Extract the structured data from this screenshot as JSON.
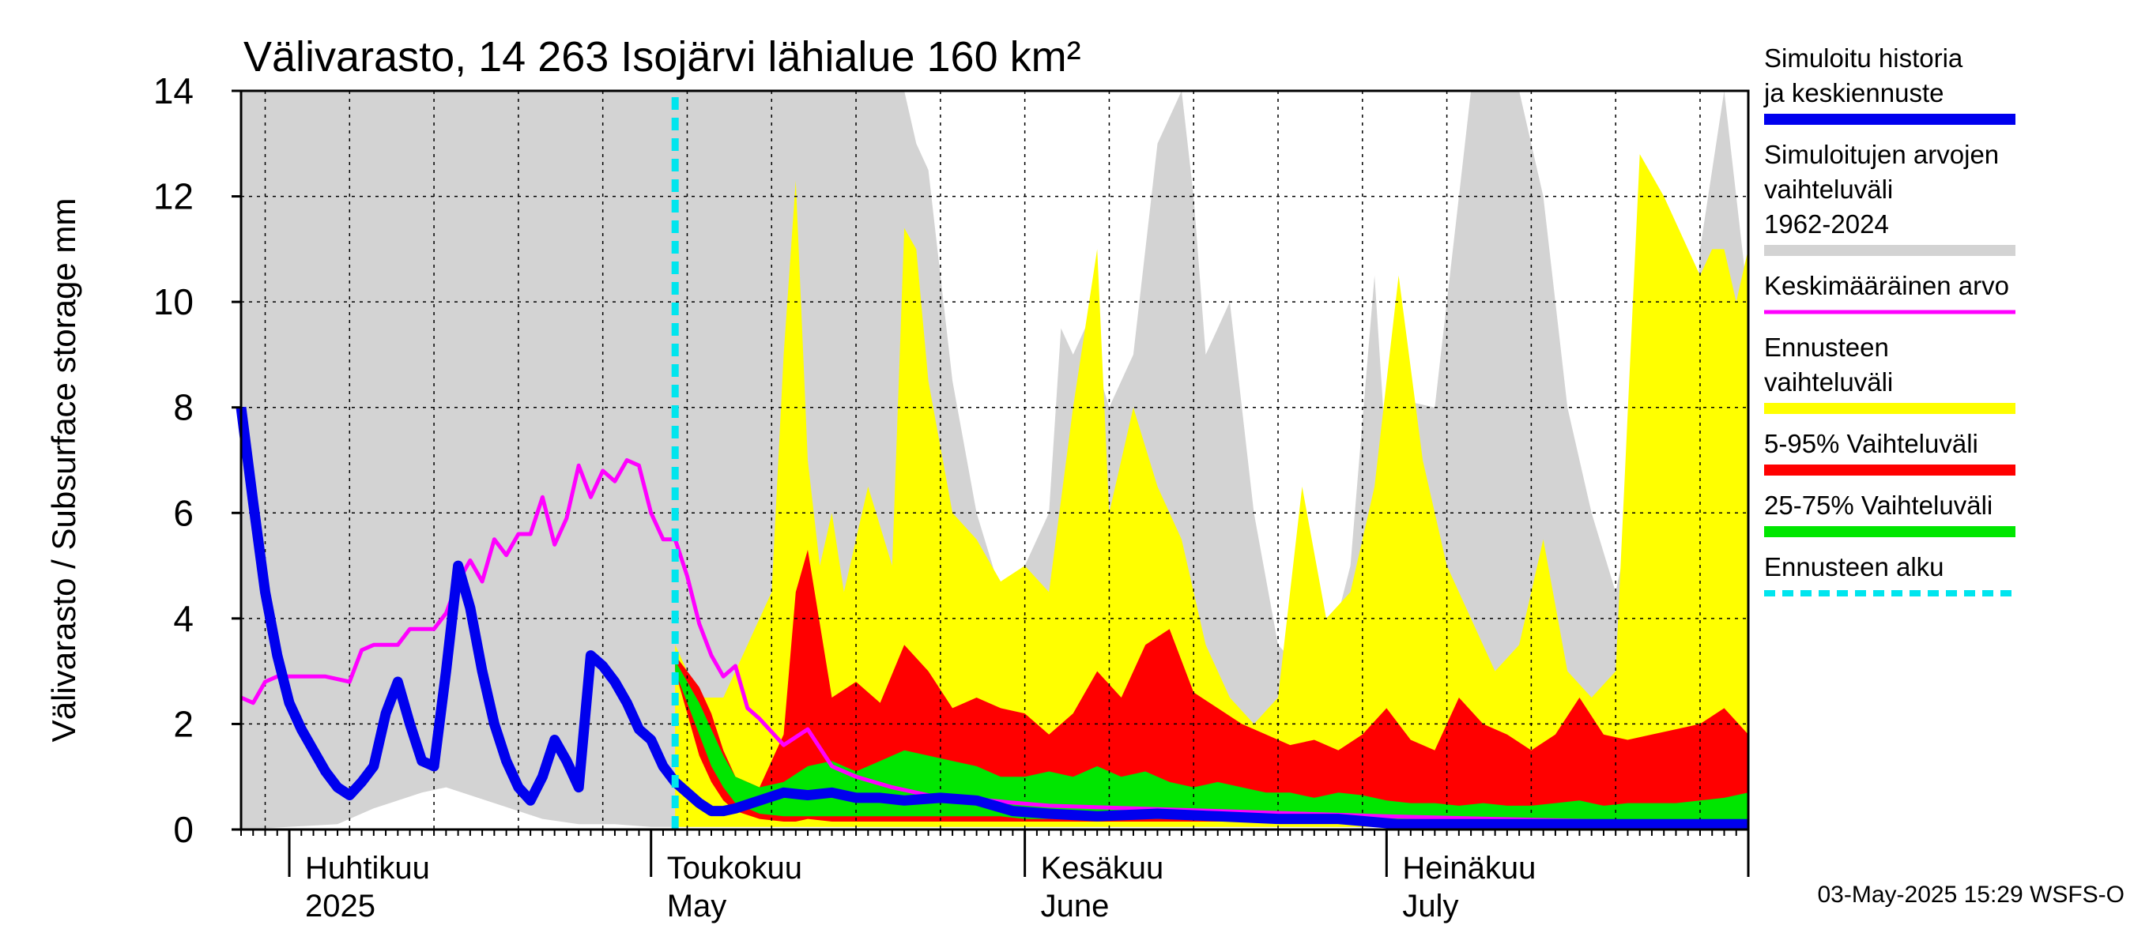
{
  "chart_data": {
    "type": "area",
    "title": "Välivarasto, 14 263 Isojärvi lähialue 160 km²",
    "ylabel": "Välivarasto / Subsurface storage  mm",
    "ylim": [
      0,
      14
    ],
    "yticks": [
      0,
      2,
      4,
      6,
      8,
      10,
      12,
      14
    ],
    "xlim": [
      "2025-03-28",
      "2025-07-31"
    ],
    "grid": true,
    "month_labels": [
      {
        "start": "2025-04-01",
        "fi": "Huhtikuu",
        "en": "2025"
      },
      {
        "start": "2025-05-01",
        "fi": "Toukokuu",
        "en": "May"
      },
      {
        "start": "2025-06-01",
        "fi": "Kesäkuu",
        "en": "June"
      },
      {
        "start": "2025-07-01",
        "fi": "Heinäkuu",
        "en": "July"
      }
    ],
    "forecast_start": "2025-05-03",
    "timestamp": "03-May-2025 15:29 WSFS-O",
    "legend": [
      {
        "label": "Simuloitu historia ja keskiennuste",
        "color": "#0000ee",
        "style": "thick"
      },
      {
        "label": "Simuloitujen arvojen vaihteluväli 1962-2024",
        "color": "#d3d3d3",
        "style": "band"
      },
      {
        "label": "Keskimääräinen arvo",
        "color": "#ff00ff",
        "style": "thin"
      },
      {
        "label": "Ennusteen vaihteluväli",
        "color": "#ffff00",
        "style": "band"
      },
      {
        "label": "5-95% Vaihteluväli",
        "color": "#ff0000",
        "style": "band"
      },
      {
        "label": "25-75% Vaihteluväli",
        "color": "#00e600",
        "style": "band"
      },
      {
        "label": "Ennusteen alku",
        "color": "#00e5ee",
        "style": "dashed"
      }
    ],
    "series": [
      {
        "name": "Simuloitu historia ja keskiennuste",
        "x": [
          "2025-03-28",
          "2025-03-29",
          "2025-03-30",
          "2025-03-31",
          "2025-04-01",
          "2025-04-02",
          "2025-04-03",
          "2025-04-04",
          "2025-04-05",
          "2025-04-06",
          "2025-04-07",
          "2025-04-08",
          "2025-04-09",
          "2025-04-10",
          "2025-04-11",
          "2025-04-12",
          "2025-04-13",
          "2025-04-14",
          "2025-04-15",
          "2025-04-16",
          "2025-04-17",
          "2025-04-18",
          "2025-04-19",
          "2025-04-20",
          "2025-04-21",
          "2025-04-22",
          "2025-04-23",
          "2025-04-24",
          "2025-04-25",
          "2025-04-26",
          "2025-04-27",
          "2025-04-28",
          "2025-04-29",
          "2025-04-30",
          "2025-05-01",
          "2025-05-02",
          "2025-05-03",
          "2025-05-04",
          "2025-05-05",
          "2025-05-06",
          "2025-05-07",
          "2025-05-08",
          "2025-05-10",
          "2025-05-12",
          "2025-05-14",
          "2025-05-16",
          "2025-05-18",
          "2025-05-20",
          "2025-05-22",
          "2025-05-25",
          "2025-05-28",
          "2025-05-31",
          "2025-06-03",
          "2025-06-07",
          "2025-06-12",
          "2025-06-17",
          "2025-06-22",
          "2025-06-27",
          "2025-07-02",
          "2025-07-10",
          "2025-07-20",
          "2025-07-31"
        ],
        "values": [
          8.0,
          6.2,
          4.5,
          3.3,
          2.4,
          1.9,
          1.5,
          1.1,
          0.8,
          0.65,
          0.9,
          1.2,
          2.2,
          2.8,
          2.0,
          1.3,
          1.2,
          3.0,
          5.0,
          4.2,
          3.0,
          2.0,
          1.3,
          0.8,
          0.55,
          1.0,
          1.7,
          1.3,
          0.8,
          3.3,
          3.1,
          2.8,
          2.4,
          1.9,
          1.7,
          1.2,
          0.9,
          0.7,
          0.5,
          0.35,
          0.35,
          0.4,
          0.55,
          0.7,
          0.65,
          0.7,
          0.6,
          0.6,
          0.55,
          0.6,
          0.55,
          0.35,
          0.3,
          0.25,
          0.3,
          0.25,
          0.2,
          0.2,
          0.1,
          0.1,
          0.1,
          0.1
        ]
      },
      {
        "name": "Keskimääräinen arvo",
        "x": [
          "2025-03-28",
          "2025-03-29",
          "2025-03-30",
          "2025-03-31",
          "2025-04-02",
          "2025-04-04",
          "2025-04-06",
          "2025-04-07",
          "2025-04-08",
          "2025-04-10",
          "2025-04-11",
          "2025-04-12",
          "2025-04-13",
          "2025-04-14",
          "2025-04-15",
          "2025-04-16",
          "2025-04-17",
          "2025-04-18",
          "2025-04-19",
          "2025-04-20",
          "2025-04-21",
          "2025-04-22",
          "2025-04-23",
          "2025-04-24",
          "2025-04-25",
          "2025-04-26",
          "2025-04-27",
          "2025-04-28",
          "2025-04-29",
          "2025-04-30",
          "2025-05-01",
          "2025-05-02",
          "2025-05-03",
          "2025-05-04",
          "2025-05-05",
          "2025-05-06",
          "2025-05-07",
          "2025-05-08",
          "2025-05-09",
          "2025-05-10",
          "2025-05-12",
          "2025-05-14",
          "2025-05-16",
          "2025-05-18",
          "2025-05-21",
          "2025-05-25",
          "2025-05-29",
          "2025-06-03",
          "2025-06-10",
          "2025-06-17",
          "2025-06-24",
          "2025-07-01",
          "2025-07-10",
          "2025-07-20",
          "2025-07-31"
        ],
        "values": [
          2.5,
          2.4,
          2.8,
          2.9,
          2.9,
          2.9,
          2.8,
          3.4,
          3.5,
          3.5,
          3.8,
          3.8,
          3.8,
          4.1,
          4.7,
          5.1,
          4.7,
          5.5,
          5.2,
          5.6,
          5.6,
          6.3,
          5.4,
          5.9,
          6.9,
          6.3,
          6.8,
          6.6,
          7.0,
          6.9,
          6.0,
          5.5,
          5.5,
          4.8,
          3.9,
          3.3,
          2.9,
          3.1,
          2.3,
          2.1,
          1.6,
          1.9,
          1.2,
          1.0,
          0.8,
          0.6,
          0.55,
          0.45,
          0.4,
          0.35,
          0.3,
          0.25,
          0.2,
          0.15,
          0.1
        ]
      }
    ],
    "bands": [
      {
        "name": "Simuloitujen arvojen vaihteluväli 1962-2024",
        "x": [
          "2025-03-28",
          "2025-04-05",
          "2025-04-08",
          "2025-04-12",
          "2025-04-14",
          "2025-04-18",
          "2025-04-22",
          "2025-04-25",
          "2025-04-28",
          "2025-05-01",
          "2025-05-05",
          "2025-05-08",
          "2025-05-12",
          "2025-05-15",
          "2025-05-18",
          "2025-05-20",
          "2025-05-22",
          "2025-05-23",
          "2025-05-24",
          "2025-05-26",
          "2025-05-28",
          "2025-05-30",
          "2025-06-01",
          "2025-06-02",
          "2025-06-03",
          "2025-06-04",
          "2025-06-05",
          "2025-06-06",
          "2025-06-08",
          "2025-06-10",
          "2025-06-12",
          "2025-06-14",
          "2025-06-15",
          "2025-06-16",
          "2025-06-18",
          "2025-06-20",
          "2025-06-22",
          "2025-06-24",
          "2025-06-26",
          "2025-06-28",
          "2025-06-30",
          "2025-07-01",
          "2025-07-03",
          "2025-07-05",
          "2025-07-07",
          "2025-07-08",
          "2025-07-10",
          "2025-07-12",
          "2025-07-14",
          "2025-07-16",
          "2025-07-18",
          "2025-07-20",
          "2025-07-22",
          "2025-07-24",
          "2025-07-25",
          "2025-07-27",
          "2025-07-29",
          "2025-07-31"
        ],
        "upper": [
          14,
          14,
          14,
          14,
          14,
          14,
          14,
          14,
          14,
          14,
          14,
          14,
          14,
          14,
          14,
          14,
          14,
          13,
          12.5,
          8.5,
          6,
          4.5,
          5,
          5.5,
          6,
          9.5,
          9,
          9.5,
          8,
          9,
          13,
          14,
          12,
          9,
          10,
          6,
          3.5,
          3,
          3.2,
          5,
          10.5,
          7,
          8.1,
          8,
          12,
          14,
          14,
          14,
          12,
          8,
          6,
          4.5,
          6.7,
          4,
          3.5,
          11,
          14,
          10
        ],
        "lower": [
          0,
          0.1,
          0.4,
          0.7,
          0.8,
          0.5,
          0.2,
          0.1,
          0.1,
          0.05,
          0.05,
          0.05,
          0.05,
          0.05,
          0.05,
          0.05,
          0.05,
          0.05,
          0.05,
          0.05,
          0.05,
          0.05,
          0.05,
          0.05,
          0.05,
          0.05,
          0.05,
          0.05,
          0.05,
          0.05,
          0.05,
          0.05,
          0.05,
          0.05,
          0.05,
          0.05,
          0.05,
          0.05,
          0.05,
          0.05,
          0.05,
          0.05,
          0.05,
          0.05,
          0.05,
          0.05,
          0.05,
          0.05,
          0.05,
          0.05,
          0.05,
          0.05,
          0.05,
          0.05,
          0.05,
          0.05,
          0.05,
          0.05
        ]
      },
      {
        "name": "Ennusteen vaihteluväli",
        "x": [
          "2025-05-03",
          "2025-05-04",
          "2025-05-05",
          "2025-05-07",
          "2025-05-09",
          "2025-05-11",
          "2025-05-12",
          "2025-05-13",
          "2025-05-14",
          "2025-05-15",
          "2025-05-16",
          "2025-05-17",
          "2025-05-19",
          "2025-05-21",
          "2025-05-22",
          "2025-05-23",
          "2025-05-24",
          "2025-05-26",
          "2025-05-28",
          "2025-05-30",
          "2025-06-01",
          "2025-06-03",
          "2025-06-05",
          "2025-06-07",
          "2025-06-08",
          "2025-06-10",
          "2025-06-12",
          "2025-06-14",
          "2025-06-16",
          "2025-06-18",
          "2025-06-20",
          "2025-06-22",
          "2025-06-24",
          "2025-06-26",
          "2025-06-28",
          "2025-06-30",
          "2025-07-02",
          "2025-07-04",
          "2025-07-06",
          "2025-07-08",
          "2025-07-10",
          "2025-07-12",
          "2025-07-14",
          "2025-07-16",
          "2025-07-18",
          "2025-07-20",
          "2025-07-22",
          "2025-07-24",
          "2025-07-26",
          "2025-07-27",
          "2025-07-28",
          "2025-07-29",
          "2025-07-30",
          "2025-07-31"
        ],
        "upper": [
          3.5,
          3.0,
          2.5,
          2.5,
          3.5,
          4.5,
          9,
          12.3,
          7,
          5,
          6,
          4.5,
          6.5,
          5,
          11.4,
          11,
          8.5,
          6,
          5.5,
          4.7,
          5,
          4.5,
          8,
          11,
          6,
          8,
          6.5,
          5.5,
          3.5,
          2.5,
          2,
          2.5,
          6.5,
          4,
          4.5,
          6.5,
          10.5,
          7,
          5,
          4,
          3,
          3.5,
          5.5,
          3,
          2.5,
          3,
          12.8,
          12,
          11,
          10.5,
          11,
          11,
          10,
          11
        ],
        "lower": [
          0.05,
          0.05,
          0.05,
          0.05,
          0.05,
          0.05,
          0.05,
          0.05,
          0.05,
          0.05,
          0.05,
          0.05,
          0.05,
          0.05,
          0.05,
          0.05,
          0.05,
          0.05,
          0.05,
          0.05,
          0.05,
          0.05,
          0.05,
          0.05,
          0.05,
          0.05,
          0.05,
          0.05,
          0.05,
          0.05,
          0.05,
          0.05,
          0.05,
          0.05,
          0.05,
          0.05,
          0.05,
          0.05,
          0.05,
          0.05,
          0.05,
          0.05,
          0.05,
          0.05,
          0.05,
          0.05,
          0.05,
          0.05,
          0.05,
          0.05,
          0.05,
          0.05,
          0.05,
          0.05
        ]
      },
      {
        "name": "5-95% Vaihteluväli",
        "x": [
          "2025-05-03",
          "2025-05-04",
          "2025-05-05",
          "2025-05-06",
          "2025-05-07",
          "2025-05-08",
          "2025-05-10",
          "2025-05-12",
          "2025-05-13",
          "2025-05-14",
          "2025-05-16",
          "2025-05-18",
          "2025-05-20",
          "2025-05-22",
          "2025-05-24",
          "2025-05-26",
          "2025-05-28",
          "2025-05-30",
          "2025-06-01",
          "2025-06-03",
          "2025-06-05",
          "2025-06-07",
          "2025-06-09",
          "2025-06-11",
          "2025-06-13",
          "2025-06-15",
          "2025-06-17",
          "2025-06-19",
          "2025-06-21",
          "2025-06-23",
          "2025-06-25",
          "2025-06-27",
          "2025-06-29",
          "2025-07-01",
          "2025-07-03",
          "2025-07-05",
          "2025-07-07",
          "2025-07-09",
          "2025-07-11",
          "2025-07-13",
          "2025-07-15",
          "2025-07-17",
          "2025-07-19",
          "2025-07-21",
          "2025-07-23",
          "2025-07-25",
          "2025-07-27",
          "2025-07-29",
          "2025-07-31"
        ],
        "upper": [
          3.3,
          3.0,
          2.7,
          2.2,
          1.5,
          1.0,
          0.8,
          1.8,
          4.5,
          5.3,
          2.5,
          2.8,
          2.4,
          3.5,
          3.0,
          2.3,
          2.5,
          2.3,
          2.2,
          1.8,
          2.2,
          3.0,
          2.5,
          3.5,
          3.8,
          2.6,
          2.3,
          2.0,
          1.8,
          1.6,
          1.7,
          1.5,
          1.8,
          2.3,
          1.7,
          1.5,
          2.5,
          2.0,
          1.8,
          1.5,
          1.8,
          2.5,
          1.8,
          1.7,
          1.8,
          1.9,
          2.0,
          2.3,
          1.8
        ],
        "lower": [
          3.0,
          2.2,
          1.4,
          0.9,
          0.55,
          0.35,
          0.2,
          0.15,
          0.15,
          0.2,
          0.15,
          0.15,
          0.15,
          0.15,
          0.15,
          0.15,
          0.15,
          0.15,
          0.15,
          0.15,
          0.15,
          0.15,
          0.15,
          0.15,
          0.15,
          0.15,
          0.15,
          0.15,
          0.15,
          0.15,
          0.15,
          0.15,
          0.15,
          0.1,
          0.1,
          0.1,
          0.1,
          0.1,
          0.1,
          0.1,
          0.1,
          0.1,
          0.1,
          0.1,
          0.1,
          0.1,
          0.1,
          0.1,
          0.1
        ]
      },
      {
        "name": "25-75% Vaihteluväli",
        "x": [
          "2025-05-03",
          "2025-05-04",
          "2025-05-05",
          "2025-05-06",
          "2025-05-07",
          "2025-05-08",
          "2025-05-10",
          "2025-05-12",
          "2025-05-14",
          "2025-05-16",
          "2025-05-18",
          "2025-05-20",
          "2025-05-22",
          "2025-05-24",
          "2025-05-26",
          "2025-05-28",
          "2025-05-30",
          "2025-06-01",
          "2025-06-03",
          "2025-06-05",
          "2025-06-07",
          "2025-06-09",
          "2025-06-11",
          "2025-06-13",
          "2025-06-15",
          "2025-06-17",
          "2025-06-19",
          "2025-06-21",
          "2025-06-23",
          "2025-06-25",
          "2025-06-27",
          "2025-06-29",
          "2025-07-01",
          "2025-07-03",
          "2025-07-05",
          "2025-07-07",
          "2025-07-09",
          "2025-07-11",
          "2025-07-13",
          "2025-07-15",
          "2025-07-17",
          "2025-07-19",
          "2025-07-21",
          "2025-07-23",
          "2025-07-25",
          "2025-07-27",
          "2025-07-29",
          "2025-07-31"
        ],
        "upper": [
          3.2,
          2.8,
          2.4,
          1.9,
          1.4,
          1.0,
          0.8,
          0.9,
          1.2,
          1.3,
          1.1,
          1.3,
          1.5,
          1.4,
          1.3,
          1.2,
          1.0,
          1.0,
          1.1,
          1.0,
          1.2,
          1.0,
          1.1,
          0.9,
          0.8,
          0.9,
          0.8,
          0.7,
          0.7,
          0.6,
          0.7,
          0.65,
          0.55,
          0.5,
          0.5,
          0.45,
          0.5,
          0.45,
          0.45,
          0.5,
          0.55,
          0.45,
          0.5,
          0.5,
          0.5,
          0.55,
          0.6,
          0.7
        ],
        "lower": [
          3.0,
          2.4,
          1.8,
          1.2,
          0.8,
          0.5,
          0.3,
          0.25,
          0.25,
          0.25,
          0.25,
          0.25,
          0.25,
          0.25,
          0.25,
          0.25,
          0.25,
          0.2,
          0.2,
          0.2,
          0.2,
          0.2,
          0.2,
          0.2,
          0.2,
          0.2,
          0.2,
          0.2,
          0.2,
          0.2,
          0.2,
          0.15,
          0.15,
          0.15,
          0.15,
          0.15,
          0.15,
          0.15,
          0.15,
          0.15,
          0.15,
          0.15,
          0.15,
          0.15,
          0.15,
          0.15,
          0.15,
          0.15
        ]
      }
    ]
  }
}
